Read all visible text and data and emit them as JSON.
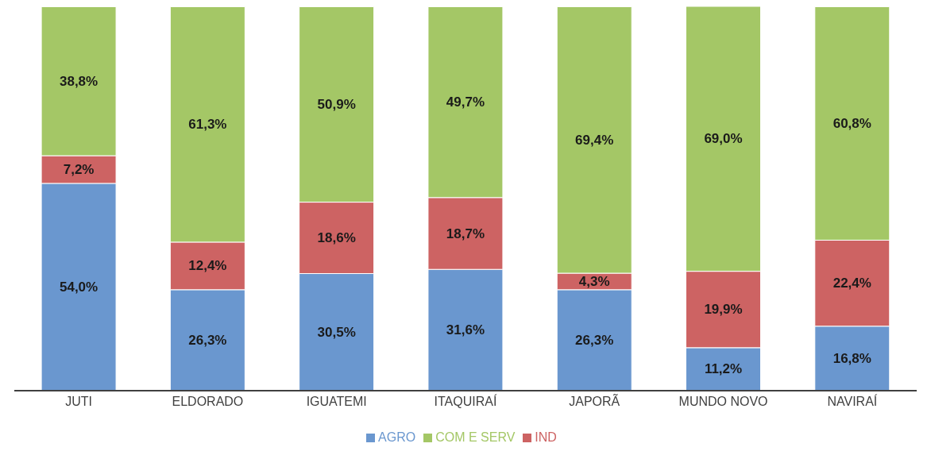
{
  "chart_data": {
    "type": "bar",
    "stacked": true,
    "categories": [
      "JUTI",
      "ELDORADO",
      "IGUATEMI",
      "ITAQUIRAÍ",
      "JAPORÃ",
      "MUNDO NOVO",
      "NAVIRAÍ"
    ],
    "series": [
      {
        "name": "AGRO",
        "color": "#6a97cf",
        "values": [
          54.0,
          26.3,
          30.5,
          31.6,
          26.3,
          11.2,
          16.8
        ],
        "value_labels": [
          "54,0%",
          "26,3%",
          "30,5%",
          "31,6%",
          "26,3%",
          "11,2%",
          "16,8%"
        ]
      },
      {
        "name": "IND",
        "color": "#cd6363",
        "values": [
          7.2,
          12.4,
          18.6,
          18.7,
          4.3,
          19.9,
          22.4
        ],
        "value_labels": [
          "7,2%",
          "12,4%",
          "18,6%",
          "18,7%",
          "4,3%",
          "19,9%",
          "22,4%"
        ]
      },
      {
        "name": "COM E SERV",
        "color": "#a4c766",
        "values": [
          38.8,
          61.3,
          50.9,
          49.7,
          69.4,
          69.0,
          60.8
        ],
        "value_labels": [
          "38,8%",
          "61,3%",
          "50,9%",
          "49,7%",
          "69,4%",
          "69,0%",
          "60,8%"
        ]
      }
    ],
    "legend": "bottom",
    "grid": false
  }
}
